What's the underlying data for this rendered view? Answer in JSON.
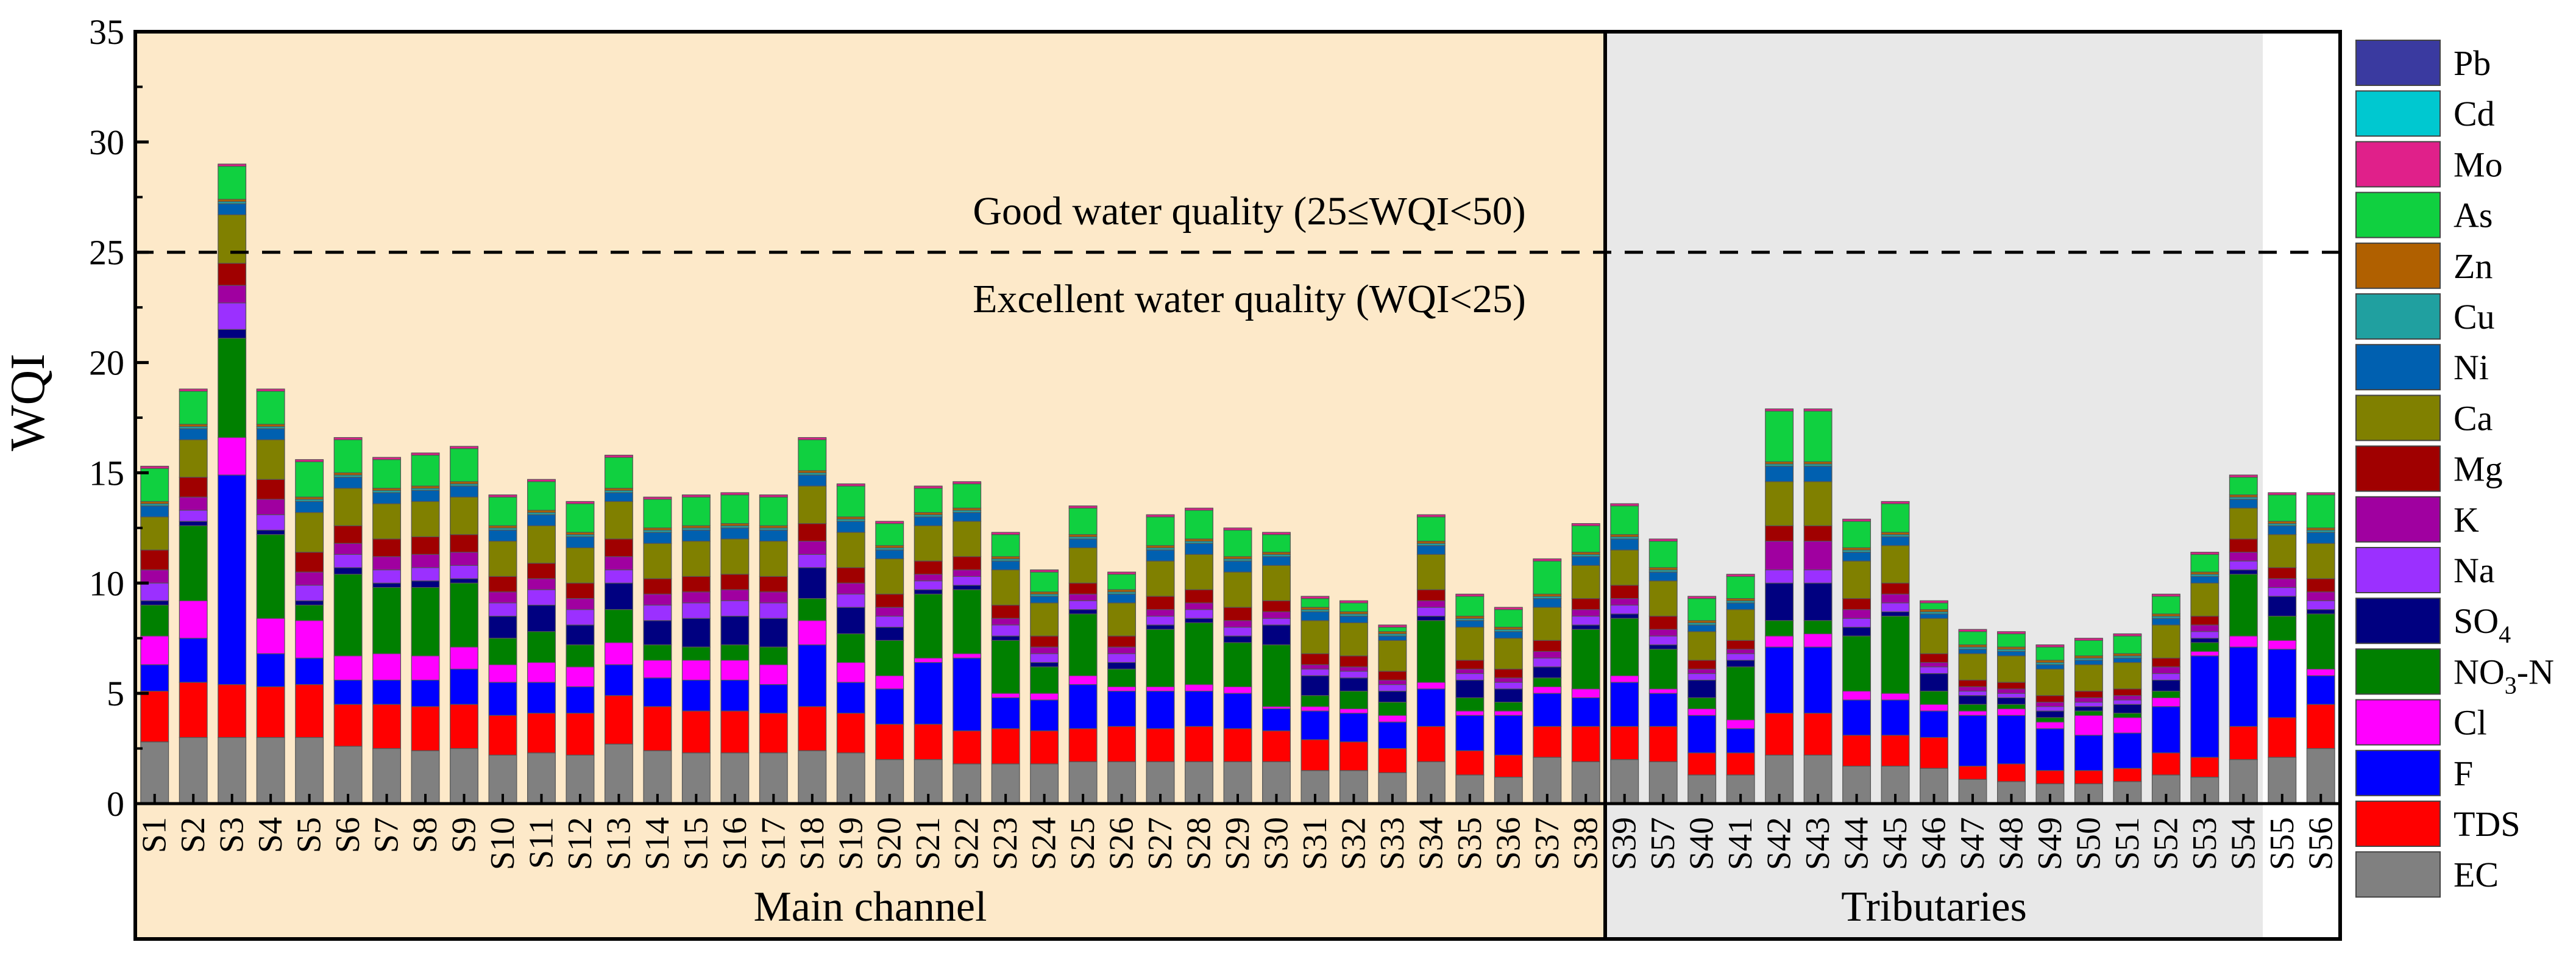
{
  "chart_data": {
    "type": "stacked-bar",
    "title": "",
    "ylabel": "WQI",
    "xlabel": "",
    "ylim": [
      0,
      35
    ],
    "yticks": [
      "0",
      "5",
      "10",
      "15",
      "20",
      "25",
      "30",
      "35"
    ],
    "threshold": 25,
    "annotations": {
      "good": "Good water quality  (25≤WQI<50)",
      "excellent": "Excellent water quality  (WQI<25)"
    },
    "groups": [
      {
        "name": "Main channel",
        "count": 38,
        "background": "#fde9c9"
      },
      {
        "name": "Tributaries",
        "count": 17,
        "background": "#e8e8e8"
      }
    ],
    "categories": [
      "S1",
      "S2",
      "S3",
      "S4",
      "S5",
      "S6",
      "S7",
      "S8",
      "S9",
      "S10",
      "S11",
      "S12",
      "S13",
      "S14",
      "S15",
      "S16",
      "S17",
      "S18",
      "S19",
      "S20",
      "S21",
      "S22",
      "S23",
      "S24",
      "S25",
      "S26",
      "S27",
      "S28",
      "S29",
      "S30",
      "S31",
      "S32",
      "S33",
      "S34",
      "S35",
      "S36",
      "S37",
      "S38",
      "S39",
      "S57",
      "S40",
      "S41",
      "S42",
      "S43",
      "S44",
      "S45",
      "S46",
      "S47",
      "S48",
      "S49",
      "S50",
      "S51",
      "S52",
      "S53",
      "S54",
      "S55",
      "S56"
    ],
    "series": [
      {
        "name": "EC",
        "color": "#808080",
        "values": [
          2.8,
          3.0,
          3.0,
          3.0,
          3.0,
          2.6,
          2.5,
          2.4,
          2.5,
          2.2,
          2.3,
          2.2,
          2.7,
          2.4,
          2.3,
          2.3,
          2.3,
          2.4,
          2.3,
          2.0,
          2.0,
          1.8,
          1.8,
          1.8,
          1.9,
          1.9,
          1.9,
          1.9,
          1.9,
          1.9,
          1.5,
          1.5,
          1.4,
          1.9,
          1.3,
          1.2,
          2.1,
          1.9,
          2.0,
          1.9,
          1.3,
          1.3,
          2.2,
          2.2,
          1.7,
          1.7,
          1.6,
          1.1,
          1.0,
          0.9,
          0.9,
          1.0,
          1.3,
          1.2,
          2.0,
          2.1,
          2.5
        ]
      },
      {
        "name": "TDS",
        "color": "#ff0000",
        "values": [
          2.3,
          2.5,
          2.4,
          2.3,
          2.4,
          1.9,
          2.0,
          2.0,
          2.0,
          1.8,
          1.8,
          1.9,
          2.2,
          2.0,
          1.9,
          1.9,
          1.8,
          2.0,
          1.8,
          1.6,
          1.6,
          1.5,
          1.6,
          1.5,
          1.5,
          1.6,
          1.5,
          1.6,
          1.5,
          1.4,
          1.4,
          1.3,
          1.1,
          1.6,
          1.1,
          1.0,
          1.4,
          1.6,
          1.5,
          1.6,
          1.0,
          1.0,
          1.9,
          1.9,
          1.4,
          1.4,
          1.4,
          0.6,
          0.8,
          0.6,
          0.6,
          0.6,
          1.0,
          0.9,
          1.5,
          1.8,
          2.0
        ]
      },
      {
        "name": "F",
        "color": "#0000ff",
        "values": [
          1.2,
          2.0,
          9.5,
          1.5,
          1.2,
          1.1,
          1.1,
          1.2,
          1.6,
          1.5,
          1.4,
          1.2,
          1.4,
          1.3,
          1.4,
          1.4,
          1.3,
          2.8,
          1.4,
          1.6,
          2.8,
          3.3,
          1.4,
          1.4,
          2.0,
          1.6,
          1.7,
          1.6,
          1.6,
          1.0,
          1.3,
          1.3,
          1.2,
          1.7,
          1.6,
          1.8,
          1.5,
          1.3,
          2.0,
          1.5,
          1.7,
          1.1,
          3.0,
          3.0,
          1.6,
          1.6,
          1.2,
          2.3,
          2.2,
          1.9,
          1.6,
          1.6,
          2.1,
          4.6,
          3.6,
          3.1,
          1.3
        ]
      },
      {
        "name": "Cl",
        "color": "#ff00ff",
        "values": [
          1.3,
          1.7,
          1.7,
          1.6,
          1.7,
          1.1,
          1.2,
          1.1,
          1.0,
          0.8,
          0.9,
          0.9,
          1.0,
          0.8,
          0.9,
          0.9,
          0.9,
          1.1,
          0.9,
          0.6,
          0.2,
          0.2,
          0.2,
          0.3,
          0.4,
          0.2,
          0.2,
          0.3,
          0.3,
          0.1,
          0.2,
          0.2,
          0.3,
          0.3,
          0.2,
          0.2,
          0.3,
          0.4,
          0.3,
          0.2,
          0.3,
          0.4,
          0.5,
          0.6,
          0.4,
          0.3,
          0.3,
          0.2,
          0.3,
          0.3,
          0.9,
          0.7,
          0.4,
          0.2,
          0.5,
          0.4,
          0.3
        ]
      },
      {
        "name": "NO₃-N",
        "color": "#008000",
        "values": [
          1.4,
          3.4,
          4.5,
          3.8,
          0.7,
          3.7,
          3.0,
          3.1,
          2.9,
          1.2,
          1.4,
          1.0,
          1.5,
          0.7,
          0.6,
          0.7,
          0.8,
          1.0,
          1.3,
          1.6,
          2.9,
          2.9,
          2.4,
          1.2,
          2.8,
          0.8,
          2.6,
          2.8,
          2.0,
          2.8,
          0.5,
          0.8,
          0.6,
          2.8,
          0.6,
          0.4,
          0.4,
          2.7,
          2.6,
          1.8,
          0.5,
          2.4,
          0.7,
          0.6,
          2.5,
          3.5,
          0.6,
          0.3,
          0.2,
          0.2,
          0.2,
          0.2,
          0.3,
          0.4,
          2.8,
          1.1,
          2.5
        ]
      },
      {
        "name": "SO₄",
        "color": "#000080",
        "values": [
          0.2,
          0.2,
          0.4,
          0.2,
          0.2,
          0.3,
          0.2,
          0.3,
          0.2,
          1.0,
          1.2,
          0.9,
          1.2,
          1.1,
          1.3,
          1.3,
          1.3,
          1.4,
          1.2,
          0.6,
          0.2,
          0.2,
          0.2,
          0.2,
          0.2,
          0.3,
          0.2,
          0.2,
          0.3,
          0.9,
          0.9,
          0.6,
          0.5,
          0.2,
          0.8,
          0.6,
          0.5,
          0.2,
          0.2,
          0.2,
          0.8,
          0.3,
          1.7,
          1.7,
          0.4,
          0.2,
          0.8,
          0.4,
          0.3,
          0.3,
          0.2,
          0.4,
          0.5,
          0.2,
          0.2,
          0.9,
          0.2
        ]
      },
      {
        "name": "Na",
        "color": "#9b30ff",
        "values": [
          0.8,
          0.5,
          1.2,
          0.7,
          0.7,
          0.6,
          0.6,
          0.6,
          0.6,
          0.6,
          0.7,
          0.7,
          0.6,
          0.7,
          0.7,
          0.7,
          0.7,
          0.6,
          0.6,
          0.5,
          0.4,
          0.4,
          0.5,
          0.4,
          0.4,
          0.4,
          0.4,
          0.4,
          0.4,
          0.3,
          0.3,
          0.3,
          0.3,
          0.4,
          0.3,
          0.3,
          0.4,
          0.4,
          0.4,
          0.4,
          0.3,
          0.3,
          0.6,
          0.6,
          0.4,
          0.4,
          0.3,
          0.2,
          0.2,
          0.2,
          0.2,
          0.2,
          0.3,
          0.3,
          0.4,
          0.4,
          0.4
        ]
      },
      {
        "name": "K",
        "color": "#a000a0",
        "values": [
          0.6,
          0.6,
          0.8,
          0.7,
          0.6,
          0.5,
          0.6,
          0.6,
          0.6,
          0.5,
          0.5,
          0.5,
          0.6,
          0.5,
          0.5,
          0.5,
          0.5,
          0.6,
          0.5,
          0.4,
          0.3,
          0.3,
          0.3,
          0.3,
          0.3,
          0.3,
          0.3,
          0.3,
          0.3,
          0.3,
          0.2,
          0.2,
          0.2,
          0.3,
          0.2,
          0.2,
          0.3,
          0.3,
          0.3,
          0.3,
          0.2,
          0.2,
          1.3,
          1.3,
          0.4,
          0.4,
          0.2,
          0.2,
          0.2,
          0.2,
          0.2,
          0.2,
          0.3,
          0.3,
          0.4,
          0.4,
          0.4
        ]
      },
      {
        "name": "Mg",
        "color": "#a00000",
        "values": [
          0.9,
          0.9,
          1.0,
          0.9,
          0.9,
          0.8,
          0.8,
          0.8,
          0.8,
          0.7,
          0.7,
          0.7,
          0.8,
          0.7,
          0.7,
          0.7,
          0.7,
          0.8,
          0.7,
          0.6,
          0.6,
          0.6,
          0.6,
          0.5,
          0.5,
          0.5,
          0.6,
          0.6,
          0.6,
          0.5,
          0.5,
          0.5,
          0.4,
          0.5,
          0.4,
          0.4,
          0.5,
          0.5,
          0.6,
          0.6,
          0.4,
          0.4,
          0.7,
          0.7,
          0.5,
          0.5,
          0.4,
          0.3,
          0.3,
          0.3,
          0.3,
          0.3,
          0.4,
          0.4,
          0.6,
          0.5,
          0.6
        ]
      },
      {
        "name": "Ca",
        "color": "#808000",
        "values": [
          1.5,
          1.7,
          2.2,
          1.8,
          1.8,
          1.7,
          1.6,
          1.6,
          1.7,
          1.6,
          1.7,
          1.6,
          1.7,
          1.6,
          1.6,
          1.6,
          1.6,
          1.7,
          1.6,
          1.6,
          1.6,
          1.6,
          1.6,
          1.5,
          1.6,
          1.5,
          1.6,
          1.6,
          1.6,
          1.6,
          1.5,
          1.5,
          1.4,
          1.6,
          1.5,
          1.4,
          1.5,
          1.5,
          1.6,
          1.6,
          1.3,
          1.4,
          2.0,
          2.0,
          1.7,
          1.7,
          1.6,
          1.2,
          1.2,
          1.2,
          1.2,
          1.2,
          1.5,
          1.5,
          1.4,
          1.5,
          1.6
        ]
      },
      {
        "name": "Ni",
        "color": "#0060b0",
        "values": [
          0.5,
          0.5,
          0.5,
          0.5,
          0.5,
          0.5,
          0.5,
          0.5,
          0.5,
          0.5,
          0.5,
          0.5,
          0.4,
          0.5,
          0.5,
          0.5,
          0.5,
          0.5,
          0.5,
          0.4,
          0.4,
          0.4,
          0.4,
          0.3,
          0.4,
          0.4,
          0.5,
          0.5,
          0.5,
          0.4,
          0.4,
          0.3,
          0.2,
          0.4,
          0.3,
          0.3,
          0.4,
          0.4,
          0.5,
          0.4,
          0.3,
          0.3,
          0.7,
          0.7,
          0.4,
          0.4,
          0.2,
          0.2,
          0.2,
          0.2,
          0.2,
          0.2,
          0.3,
          0.3,
          0.4,
          0.4,
          0.5
        ]
      },
      {
        "name": "Cu",
        "color": "#20a0a0",
        "values": [
          0.1,
          0.1,
          0.1,
          0.1,
          0.1,
          0.1,
          0.1,
          0.1,
          0.1,
          0.1,
          0.1,
          0.1,
          0.1,
          0.1,
          0.1,
          0.1,
          0.1,
          0.1,
          0.1,
          0.1,
          0.1,
          0.1,
          0.1,
          0.1,
          0.1,
          0.1,
          0.1,
          0.1,
          0.1,
          0.1,
          0.1,
          0.1,
          0.1,
          0.1,
          0.1,
          0.1,
          0.1,
          0.1,
          0.1,
          0.1,
          0.1,
          0.1,
          0.1,
          0.1,
          0.1,
          0.1,
          0.1,
          0.1,
          0.1,
          0.1,
          0.1,
          0.1,
          0.1,
          0.1,
          0.1,
          0.1,
          0.1
        ]
      },
      {
        "name": "Zn",
        "color": "#b06000",
        "values": [
          0.1,
          0.1,
          0.1,
          0.1,
          0.1,
          0.1,
          0.1,
          0.1,
          0.1,
          0.1,
          0.1,
          0.1,
          0.1,
          0.1,
          0.1,
          0.1,
          0.1,
          0.1,
          0.1,
          0.1,
          0.1,
          0.1,
          0.1,
          0.1,
          0.1,
          0.1,
          0.1,
          0.1,
          0.1,
          0.1,
          0.1,
          0.1,
          0.1,
          0.1,
          0.1,
          0.1,
          0.1,
          0.1,
          0.1,
          0.1,
          0.1,
          0.1,
          0.1,
          0.1,
          0.1,
          0.1,
          0.1,
          0.1,
          0.1,
          0.1,
          0.1,
          0.1,
          0.1,
          0.1,
          0.1,
          0.1,
          0.1
        ]
      },
      {
        "name": "As",
        "color": "#10d040",
        "values": [
          1.5,
          1.5,
          1.5,
          1.5,
          1.6,
          1.5,
          1.3,
          1.4,
          1.5,
          1.3,
          1.3,
          1.3,
          1.4,
          1.3,
          1.3,
          1.3,
          1.3,
          1.4,
          1.4,
          1.0,
          1.1,
          1.1,
          1.0,
          0.9,
          1.2,
          0.7,
          1.3,
          1.3,
          1.2,
          0.8,
          0.4,
          0.4,
          0.2,
          1.1,
          0.9,
          0.8,
          1.5,
          1.2,
          1.3,
          1.2,
          1.0,
          1.0,
          2.3,
          2.3,
          1.2,
          1.3,
          0.3,
          0.6,
          0.6,
          0.6,
          0.7,
          0.8,
          0.8,
          0.8,
          0.8,
          1.2,
          1.5
        ]
      },
      {
        "name": "Mo",
        "color": "#e0208a",
        "values": [
          0.1,
          0.1,
          0.1,
          0.1,
          0.1,
          0.1,
          0.1,
          0.1,
          0.1,
          0.1,
          0.1,
          0.1,
          0.1,
          0.1,
          0.1,
          0.1,
          0.1,
          0.1,
          0.1,
          0.1,
          0.1,
          0.1,
          0.1,
          0.1,
          0.1,
          0.1,
          0.1,
          0.1,
          0.1,
          0.1,
          0.1,
          0.1,
          0.1,
          0.1,
          0.1,
          0.1,
          0.1,
          0.1,
          0.1,
          0.1,
          0.1,
          0.1,
          0.1,
          0.1,
          0.1,
          0.1,
          0.1,
          0.1,
          0.1,
          0.1,
          0.1,
          0.1,
          0.1,
          0.1,
          0.1,
          0.1,
          0.1
        ]
      },
      {
        "name": "Cd",
        "color": "#00c8d0",
        "values": [
          0,
          0,
          0,
          0,
          0,
          0,
          0,
          0,
          0,
          0,
          0,
          0,
          0,
          0,
          0,
          0,
          0,
          0,
          0,
          0,
          0,
          0,
          0,
          0,
          0,
          0,
          0,
          0,
          0,
          0,
          0,
          0,
          0,
          0,
          0,
          0,
          0,
          0,
          0,
          0,
          0,
          0,
          0,
          0,
          0,
          0,
          0,
          0,
          0,
          0,
          0,
          0,
          0,
          0,
          0,
          0,
          0
        ]
      },
      {
        "name": "Pb",
        "color": "#3a3aa0",
        "values": [
          0,
          0,
          0,
          0,
          0,
          0,
          0,
          0,
          0,
          0,
          0,
          0,
          0,
          0,
          0,
          0,
          0,
          0,
          0,
          0,
          0,
          0,
          0,
          0,
          0,
          0,
          0,
          0,
          0,
          0,
          0,
          0,
          0,
          0,
          0,
          0,
          0,
          0,
          0,
          0,
          0,
          0,
          0,
          0,
          0,
          0,
          0,
          0,
          0,
          0,
          0,
          0,
          0,
          0,
          0,
          0,
          0
        ]
      }
    ],
    "legend_order": [
      "Pb",
      "Cd",
      "Mo",
      "As",
      "Zn",
      "Cu",
      "Ni",
      "Ca",
      "Mg",
      "K",
      "Na",
      "SO₄",
      "NO₃-N",
      "Cl",
      "F",
      "TDS",
      "EC"
    ],
    "legend_labels": [
      {
        "key": "Pb",
        "main": "Pb",
        "sub": "",
        "suffix": ""
      },
      {
        "key": "Cd",
        "main": "Cd",
        "sub": "",
        "suffix": ""
      },
      {
        "key": "Mo",
        "main": "Mo",
        "sub": "",
        "suffix": ""
      },
      {
        "key": "As",
        "main": "As",
        "sub": "",
        "suffix": ""
      },
      {
        "key": "Zn",
        "main": "Zn",
        "sub": "",
        "suffix": ""
      },
      {
        "key": "Cu",
        "main": "Cu",
        "sub": "",
        "suffix": ""
      },
      {
        "key": "Ni",
        "main": "Ni",
        "sub": "",
        "suffix": ""
      },
      {
        "key": "Ca",
        "main": "Ca",
        "sub": "",
        "suffix": ""
      },
      {
        "key": "Mg",
        "main": "Mg",
        "sub": "",
        "suffix": ""
      },
      {
        "key": "K",
        "main": "K",
        "sub": "",
        "suffix": ""
      },
      {
        "key": "Na",
        "main": "Na",
        "sub": "",
        "suffix": ""
      },
      {
        "key": "SO₄",
        "main": "SO",
        "sub": "4",
        "suffix": ""
      },
      {
        "key": "NO₃-N",
        "main": "NO",
        "sub": "3",
        "suffix": "-N"
      },
      {
        "key": "Cl",
        "main": "Cl",
        "sub": "",
        "suffix": ""
      },
      {
        "key": "F",
        "main": "F",
        "sub": "",
        "suffix": ""
      },
      {
        "key": "TDS",
        "main": "TDS",
        "sub": "",
        "suffix": ""
      },
      {
        "key": "EC",
        "main": "EC",
        "sub": "",
        "suffix": ""
      }
    ]
  }
}
